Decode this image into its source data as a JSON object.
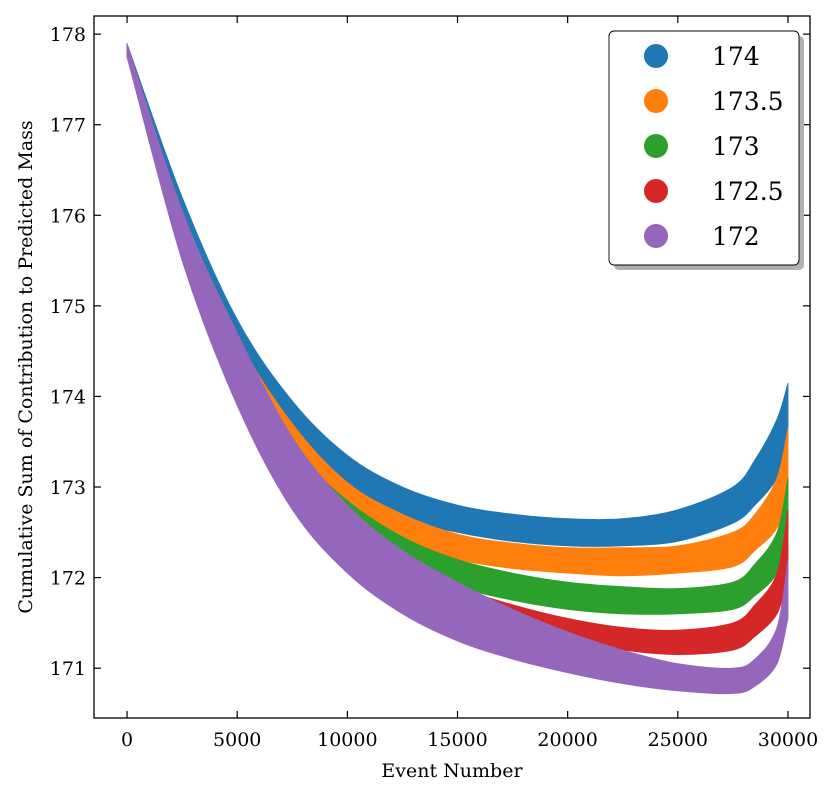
{
  "chart_data": {
    "type": "area",
    "title": "",
    "xlabel": "Event Number",
    "ylabel": "Cumulative Sum of Contribution to Predicted Mass",
    "xlim": [
      -1500,
      31000
    ],
    "ylim": [
      170.45,
      178.2
    ],
    "x_ticks": [
      0,
      5000,
      10000,
      15000,
      20000,
      25000,
      30000
    ],
    "x_tick_labels": [
      "0",
      "5000",
      "10000",
      "15000",
      "20000",
      "25000",
      "30000"
    ],
    "y_ticks": [
      171,
      172,
      173,
      174,
      175,
      176,
      177,
      178
    ],
    "y_tick_labels": [
      "171",
      "172",
      "173",
      "174",
      "175",
      "176",
      "177",
      "178"
    ],
    "legend_position": "top-right",
    "series": [
      {
        "name": "174",
        "color": "#1f77b4",
        "x": [
          0,
          2500,
          5000,
          7500,
          10000,
          12500,
          15000,
          17500,
          20000,
          22500,
          25000,
          27500,
          28500,
          29500,
          30000
        ],
        "upper": [
          177.9,
          176.2,
          174.85,
          173.95,
          173.35,
          173.0,
          172.8,
          172.7,
          172.65,
          172.65,
          172.75,
          173.0,
          173.3,
          173.75,
          174.15
        ],
        "lower": [
          177.8,
          175.95,
          174.55,
          173.6,
          173.0,
          172.65,
          172.5,
          172.4,
          172.35,
          172.35,
          172.4,
          172.6,
          172.8,
          173.1,
          173.5
        ]
      },
      {
        "name": "173.5",
        "color": "#ff7f0e",
        "x": [
          0,
          2500,
          5000,
          7500,
          10000,
          12500,
          15000,
          17500,
          20000,
          22500,
          25000,
          27500,
          28500,
          29500,
          30000
        ],
        "upper": [
          177.85,
          176.05,
          174.65,
          173.7,
          173.05,
          172.7,
          172.48,
          172.38,
          172.33,
          172.33,
          172.35,
          172.5,
          172.7,
          173.1,
          173.65
        ],
        "lower": [
          177.75,
          175.8,
          174.35,
          173.35,
          172.75,
          172.4,
          172.2,
          172.1,
          172.05,
          172.02,
          172.05,
          172.12,
          172.3,
          172.55,
          172.95
        ]
      },
      {
        "name": "173",
        "color": "#2ca02c",
        "x": [
          0,
          2500,
          5000,
          7500,
          10000,
          12500,
          15000,
          17500,
          20000,
          22500,
          25000,
          27500,
          28500,
          29500,
          30000
        ],
        "upper": [
          177.85,
          175.95,
          174.45,
          173.45,
          172.85,
          172.45,
          172.2,
          172.05,
          171.95,
          171.9,
          171.88,
          171.95,
          172.15,
          172.5,
          173.1
        ],
        "lower": [
          177.75,
          175.7,
          174.2,
          173.15,
          172.55,
          172.15,
          171.9,
          171.75,
          171.65,
          171.6,
          171.6,
          171.65,
          171.8,
          172.05,
          172.5
        ]
      },
      {
        "name": "172.5",
        "color": "#d62728",
        "x": [
          0,
          2500,
          5000,
          7500,
          10000,
          12500,
          15000,
          17500,
          20000,
          22500,
          25000,
          27500,
          28500,
          29500,
          30000
        ],
        "upper": [
          177.85,
          175.85,
          174.3,
          173.2,
          172.6,
          172.2,
          171.9,
          171.7,
          171.55,
          171.45,
          171.42,
          171.5,
          171.7,
          172.05,
          172.75
        ],
        "lower": [
          177.75,
          175.6,
          173.95,
          172.85,
          172.2,
          171.8,
          171.55,
          171.4,
          171.3,
          171.2,
          171.15,
          171.2,
          171.35,
          171.6,
          172.0
        ]
      },
      {
        "name": "172",
        "color": "#9467bd",
        "x": [
          0,
          2500,
          5000,
          7500,
          10000,
          12500,
          15000,
          17500,
          20000,
          22500,
          25000,
          27500,
          28500,
          29500,
          30000
        ],
        "upper": [
          177.9,
          176.05,
          174.7,
          173.55,
          172.8,
          172.3,
          171.95,
          171.65,
          171.4,
          171.2,
          171.05,
          171.0,
          171.1,
          171.45,
          172.2
        ],
        "lower": [
          177.75,
          175.5,
          173.9,
          172.75,
          172.05,
          171.6,
          171.3,
          171.1,
          170.95,
          170.83,
          170.75,
          170.72,
          170.8,
          171.05,
          171.55
        ]
      }
    ]
  }
}
